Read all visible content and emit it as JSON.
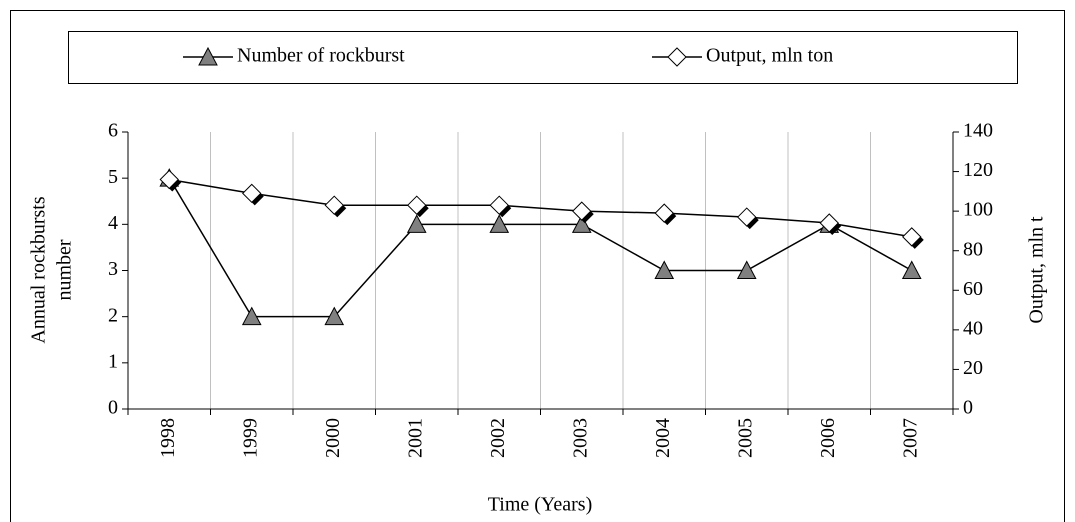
{
  "chart_data": {
    "type": "line",
    "categories": [
      "1998",
      "1999",
      "2000",
      "2001",
      "2002",
      "2003",
      "2004",
      "2005",
      "2006",
      "2007"
    ],
    "series": [
      {
        "name": "Number of rockburst",
        "color": "#808080",
        "marker": "triangle",
        "values": [
          5,
          2,
          2,
          4,
          4,
          4,
          3,
          3,
          4,
          3
        ]
      },
      {
        "name": "Output, mln ton",
        "color": "#ffffff",
        "marker": "diamond",
        "axis": "y2",
        "values": [
          116,
          109,
          103,
          103,
          103,
          100,
          99,
          97,
          94,
          87
        ]
      }
    ],
    "xlabel": "Time (Years)",
    "ylabel": [
      "Annual rockbursts",
      "number"
    ],
    "y2label": "Output, mln t",
    "ylim": [
      0,
      6
    ],
    "yticks": [
      0,
      1,
      2,
      3,
      4,
      5,
      6
    ],
    "y2lim": [
      0,
      140
    ],
    "y2ticks": [
      0,
      20,
      40,
      60,
      80,
      100,
      120,
      140
    ],
    "grid": true,
    "legend": "top"
  }
}
